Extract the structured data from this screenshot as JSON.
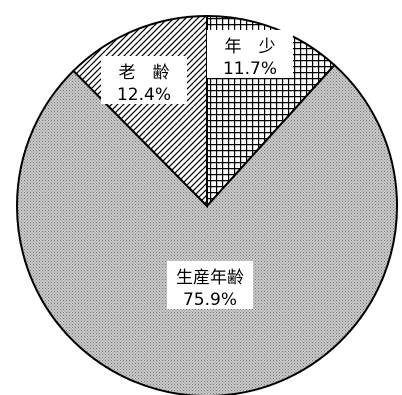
{
  "chart_data": {
    "type": "pie",
    "start": "12 o'clock",
    "direction": "clockwise",
    "fill_styles": [
      "crosshatch",
      "dots",
      "diagonal-hatch"
    ],
    "slices": [
      {
        "name": "年　少",
        "value": 11.7,
        "label": "11.7%"
      },
      {
        "name": "生産年齢",
        "value": 75.9,
        "label": "75.9%"
      },
      {
        "name": "老　齢",
        "value": 12.4,
        "label": "12.4%"
      }
    ]
  }
}
